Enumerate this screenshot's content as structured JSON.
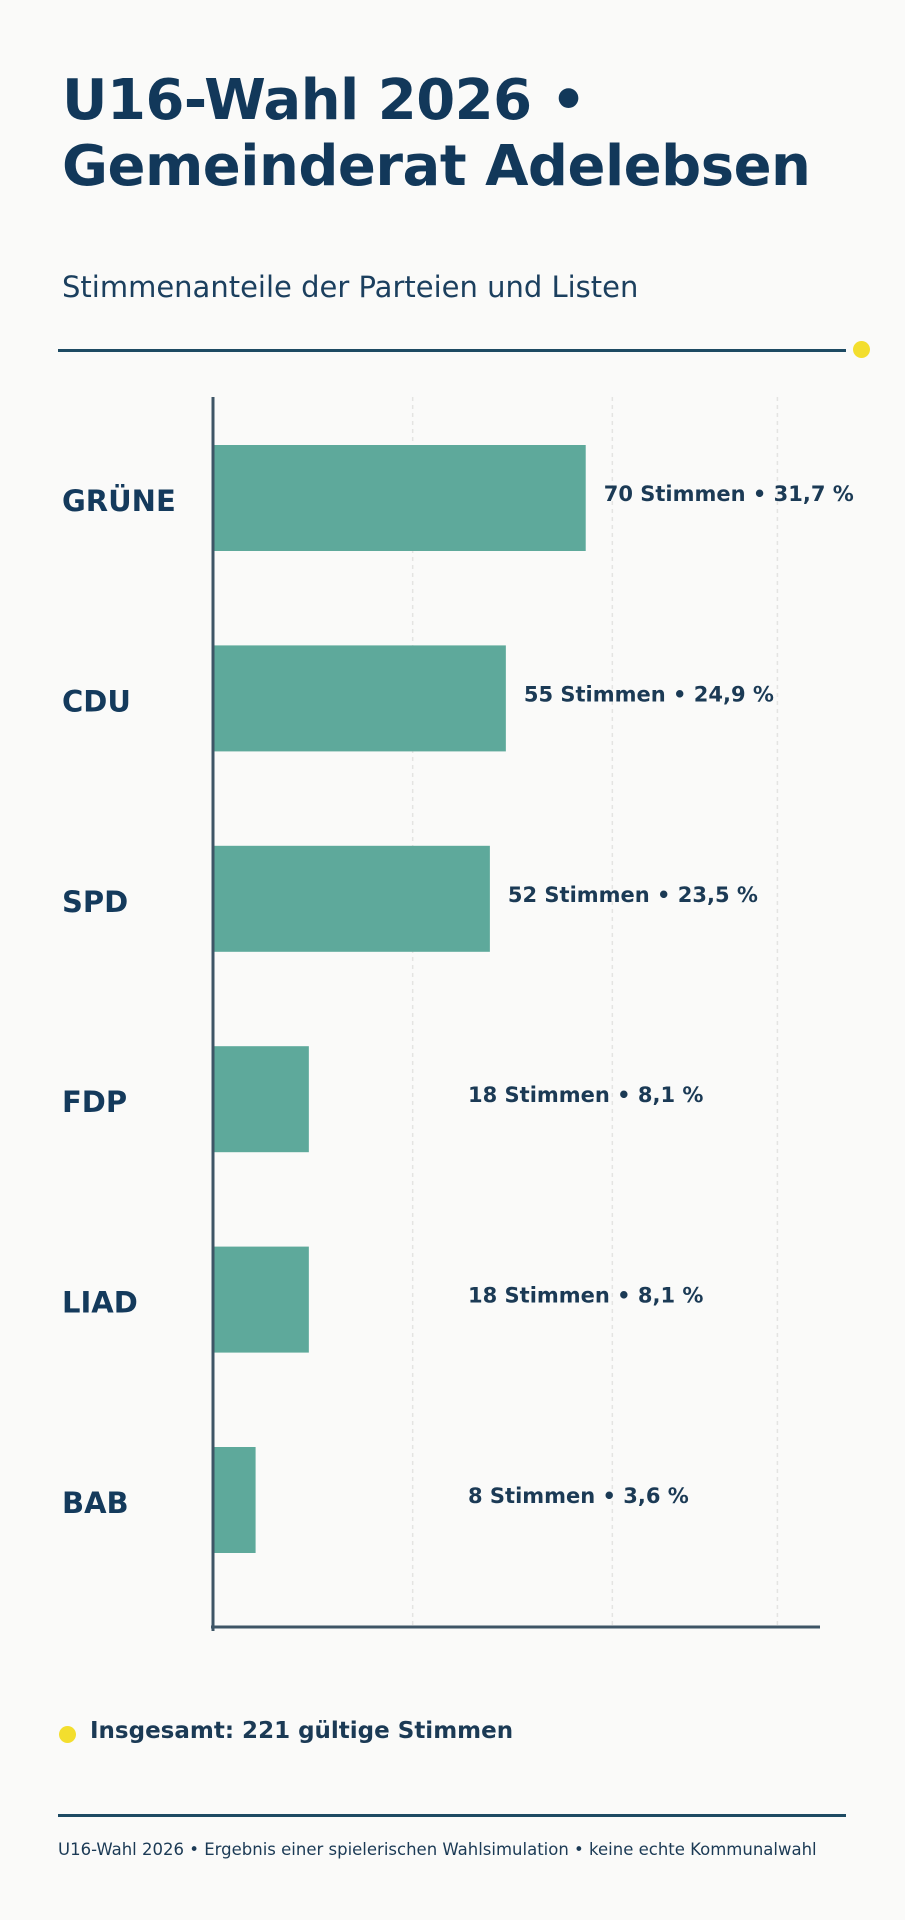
{
  "page": {
    "title": "U16-Wahl 2026 • Gemeinderat Adelebsen",
    "subtitle": "Stimmenanteile der Parteien und Listen",
    "total": "Insgesamt: 221 gültige Stimmen",
    "footer": "U16-Wahl 2026 • Ergebnis einer spielerischen Wahlsimulation • keine echte Kommunalwahl",
    "colors": {
      "bar": "#5ea99b",
      "accent_dot": "#f3de2e",
      "rule": "#1d4a63",
      "text": "#143a5c"
    }
  },
  "chart_data": {
    "type": "bar",
    "orientation": "horizontal",
    "title": "U16-Wahl 2026 • Gemeinderat Adelebsen",
    "subtitle": "Stimmenanteile der Parteien und Listen",
    "categories": [
      "GRÜNE",
      "CDU",
      "SPD",
      "FDP",
      "LIAD",
      "BAB"
    ],
    "values": [
      70,
      55,
      52,
      18,
      18,
      8
    ],
    "percentages": [
      31.7,
      24.9,
      23.5,
      8.1,
      8.1,
      3.6
    ],
    "data_labels": [
      "70 Stimmen • 31,7 %",
      "55 Stimmen • 24,9 %",
      "52 Stimmen • 23,5 %",
      "18 Stimmen • 8,1 %",
      "18 Stimmen • 8,1 %",
      "8 Stimmen • 3,6 %"
    ],
    "xlim": [
      0,
      114
    ],
    "grid": true,
    "xlabel": "",
    "ylabel": ""
  }
}
